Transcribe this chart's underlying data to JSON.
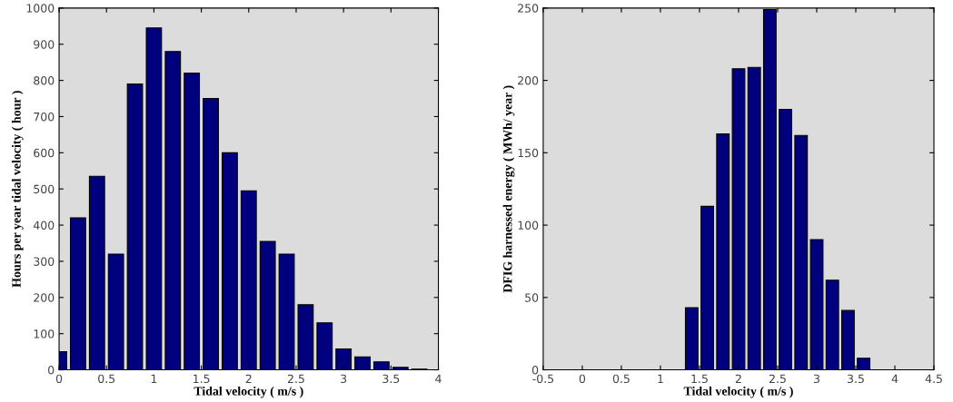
{
  "chart_data": [
    {
      "type": "bar",
      "xlabel": "Tidal velocity ( m/s )",
      "ylabel": "Hours per year tidal velocity ( hour )",
      "x": [
        0,
        0.2,
        0.4,
        0.6,
        0.8,
        1.0,
        1.2,
        1.4,
        1.6,
        1.8,
        2.0,
        2.2,
        2.4,
        2.6,
        2.8,
        3.0,
        3.2,
        3.4,
        3.6,
        3.8
      ],
      "values": [
        50,
        420,
        535,
        320,
        790,
        945,
        880,
        820,
        750,
        600,
        495,
        355,
        320,
        180,
        130,
        58,
        36,
        22,
        7,
        2
      ],
      "color": "#00007f",
      "xlim": [
        0,
        4
      ],
      "xticks": [
        0,
        0.5,
        1,
        1.5,
        2,
        2.5,
        3,
        3.5,
        4
      ],
      "ylim": [
        0,
        1000
      ],
      "yticks": [
        0,
        100,
        200,
        300,
        400,
        500,
        600,
        700,
        800,
        900,
        1000
      ],
      "grid": false
    },
    {
      "type": "bar",
      "xlabel": "Tidal velocity ( m/s )",
      "ylabel": "DFIG harnessed energy ( MWh/ year )",
      "x": [
        1.4,
        1.6,
        1.8,
        2.0,
        2.2,
        2.4,
        2.6,
        2.8,
        3.0,
        3.2,
        3.4,
        3.6
      ],
      "values": [
        43,
        113,
        163,
        208,
        209,
        249,
        180,
        162,
        90,
        62,
        41,
        8
      ],
      "color": "#00007f",
      "xlim": [
        -0.5,
        4.5
      ],
      "xticks": [
        -0.5,
        0,
        0.5,
        1,
        1.5,
        2,
        2.5,
        3,
        3.5,
        4,
        4.5
      ],
      "ylim": [
        0,
        250
      ],
      "yticks": [
        0,
        50,
        100,
        150,
        200,
        250
      ],
      "grid": false
    }
  ]
}
